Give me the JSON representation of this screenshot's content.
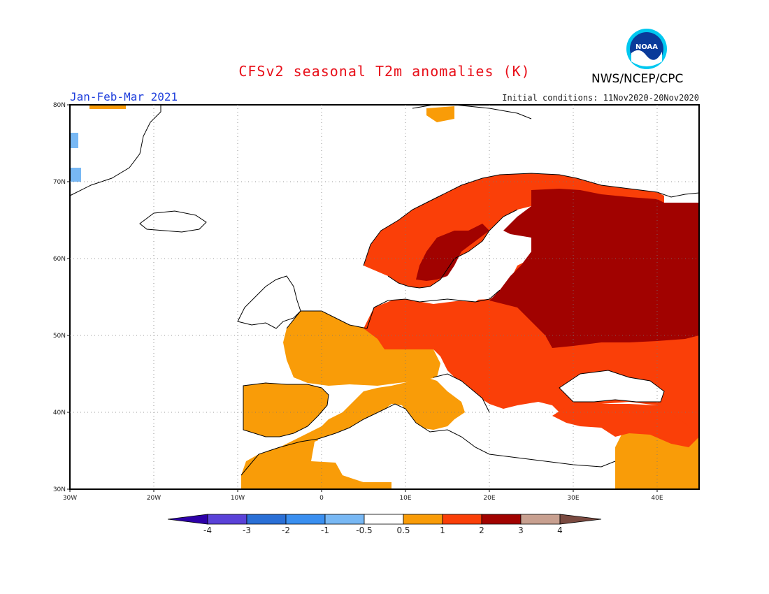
{
  "header": {
    "title": "CFSv2 seasonal T2m anomalies (K)",
    "period": "Jan-Feb-Mar 2021",
    "initial_conditions": "Initial conditions: 11Nov2020-20Nov2020",
    "agency": "NWS/NCEP/CPC",
    "logo_text": "NOAA"
  },
  "map": {
    "lon_range": [
      -30,
      45
    ],
    "lat_range": [
      30,
      80
    ],
    "lon_ticks": [
      "30W",
      "20W",
      "10W",
      "0",
      "10E",
      "20E",
      "30E",
      "40E"
    ],
    "lat_ticks": [
      "30N",
      "40N",
      "50N",
      "60N",
      "70N",
      "80N"
    ],
    "regions_anomaly_class": {
      "iberia_france_north_africa": "0.5 to 1",
      "central_europe_scandinavia": "1 to 2",
      "russia_belarus_northern_scandinavia": "2 to 3",
      "greenland_coast": "-1 to -0.5",
      "mediterranean_sea_ocean": "-0.5 to 0.5"
    }
  },
  "colorbar": {
    "labels": [
      "-4",
      "-3",
      "-2",
      "-1",
      "-0.5",
      "0.5",
      "1",
      "2",
      "3",
      "4"
    ],
    "colors": {
      "lt_m4": "#2d00a8",
      "m4_m3": "#5a42d8",
      "m3_m2": "#2a6fd6",
      "m2_m1": "#3a8ff0",
      "m1_m05": "#78b8f4",
      "m05_05": "#ffffff",
      "05_1": "#f99c08",
      "1_2": "#fa3f08",
      "2_3": "#a10200",
      "3_4": "#c8a090",
      "gt_4": "#7a4a40"
    }
  }
}
